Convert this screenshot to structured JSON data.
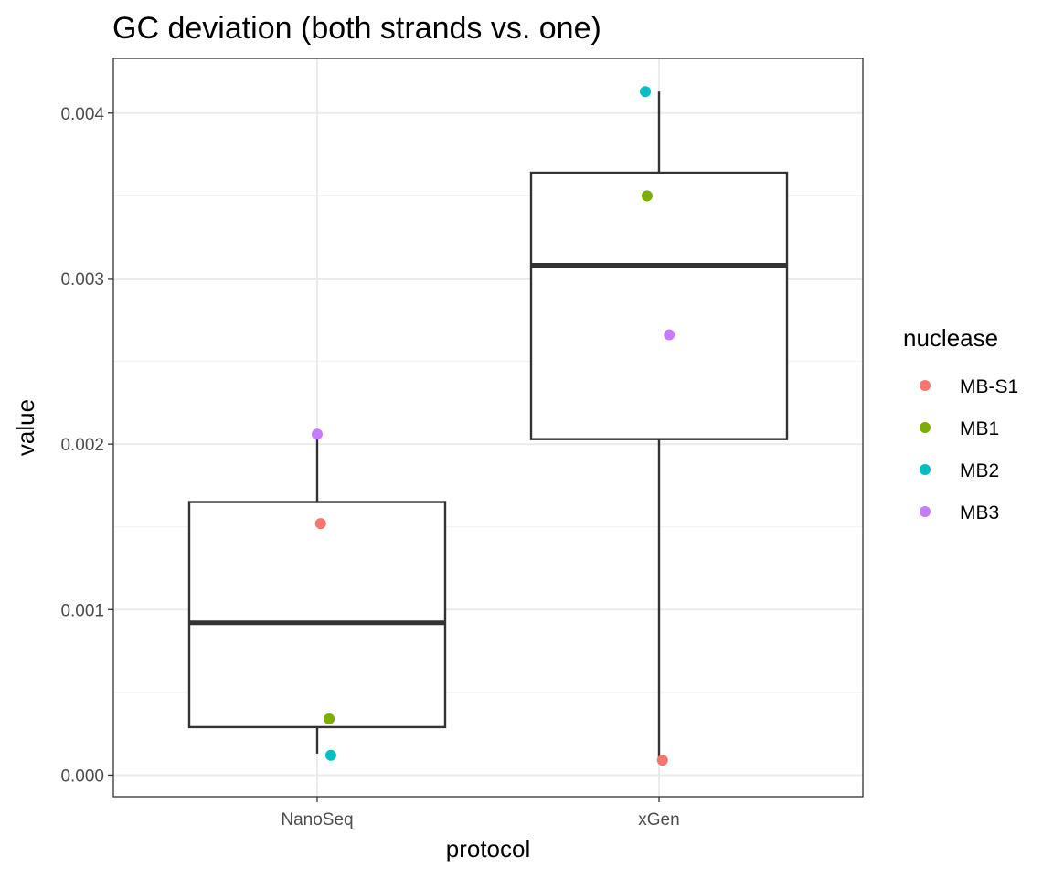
{
  "chart_data": {
    "type": "boxplot",
    "title": "GC deviation (both strands vs. one)",
    "xlabel": "protocol",
    "ylabel": "value",
    "categories": [
      "NanoSeq",
      "xGen"
    ],
    "ylim": [
      -0.00013,
      0.00433
    ],
    "y_ticks": [
      0.0,
      0.001,
      0.002,
      0.003,
      0.004
    ],
    "y_tick_labels": [
      "0.000",
      "0.001",
      "0.002",
      "0.003",
      "0.004"
    ],
    "grid": true,
    "boxes": [
      {
        "category": "NanoSeq",
        "whisker_low": 0.00013,
        "q1": 0.00029,
        "median": 0.00092,
        "q3": 0.00165,
        "whisker_high": 0.00206
      },
      {
        "category": "xGen",
        "whisker_low": 9e-05,
        "q1": 0.00203,
        "median": 0.00308,
        "q3": 0.00364,
        "whisker_high": 0.00413
      }
    ],
    "points": [
      {
        "category": "NanoSeq",
        "nuclease": "MB-S1",
        "value": 0.00152,
        "jitter": 0.02
      },
      {
        "category": "NanoSeq",
        "nuclease": "MB1",
        "value": 0.00034,
        "jitter": 0.07
      },
      {
        "category": "NanoSeq",
        "nuclease": "MB2",
        "value": 0.00012,
        "jitter": 0.08
      },
      {
        "category": "NanoSeq",
        "nuclease": "MB3",
        "value": 0.00206,
        "jitter": 0.0
      },
      {
        "category": "xGen",
        "nuclease": "MB-S1",
        "value": 9e-05,
        "jitter": 0.02
      },
      {
        "category": "xGen",
        "nuclease": "MB1",
        "value": 0.0035,
        "jitter": -0.07
      },
      {
        "category": "xGen",
        "nuclease": "MB2",
        "value": 0.00413,
        "jitter": -0.08
      },
      {
        "category": "xGen",
        "nuclease": "MB3",
        "value": 0.00266,
        "jitter": 0.06
      }
    ],
    "legend": {
      "title": "nuclease",
      "position": "right",
      "entries": [
        {
          "label": "MB-S1",
          "color": "#F8766D"
        },
        {
          "label": "MB1",
          "color": "#7CAE00"
        },
        {
          "label": "MB2",
          "color": "#00BFC4"
        },
        {
          "label": "MB3",
          "color": "#C77CFF"
        }
      ]
    }
  }
}
